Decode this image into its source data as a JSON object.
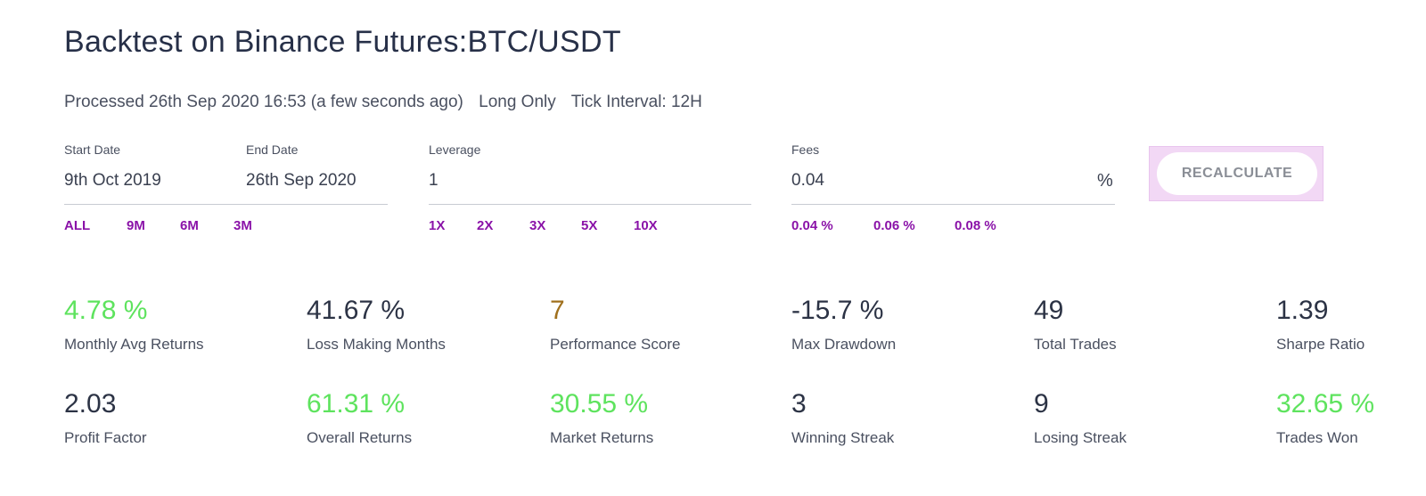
{
  "header": {
    "title": "Backtest on Binance Futures:BTC/USDT",
    "processed": "Processed 26th Sep 2020 16:53 (a few seconds ago)",
    "mode": "Long Only",
    "tick_interval": "Tick Interval: 12H"
  },
  "form": {
    "start_date": {
      "label": "Start Date",
      "value": "9th Oct 2019"
    },
    "end_date": {
      "label": "End Date",
      "value": "26th Sep 2020"
    },
    "leverage": {
      "label": "Leverage",
      "value": "1"
    },
    "fees": {
      "label": "Fees",
      "value": "0.04",
      "unit": "%"
    },
    "range_options": [
      "ALL",
      "9M",
      "6M",
      "3M"
    ],
    "leverage_options": [
      "1X",
      "2X",
      "3X",
      "5X",
      "10X"
    ],
    "fee_options": [
      "0.04 %",
      "0.06 %",
      "0.08 %"
    ],
    "recalculate_label": "RECALCULATE"
  },
  "colors": {
    "positive": "#5ee35e",
    "neutral": "#2c3345",
    "score": "#a0701d",
    "accent": "#8a12a8"
  },
  "stats": [
    {
      "value": "4.78 %",
      "label": "Monthly Avg Returns",
      "tone": "positive"
    },
    {
      "value": "41.67 %",
      "label": "Loss Making Months",
      "tone": "neutral"
    },
    {
      "value": "7",
      "label": "Performance Score",
      "tone": "score"
    },
    {
      "value": "-15.7 %",
      "label": "Max Drawdown",
      "tone": "neutral"
    },
    {
      "value": "49",
      "label": "Total Trades",
      "tone": "neutral"
    },
    {
      "value": "1.39",
      "label": "Sharpe Ratio",
      "tone": "neutral"
    },
    {
      "value": "2.03",
      "label": "Profit Factor",
      "tone": "neutral"
    },
    {
      "value": "61.31 %",
      "label": "Overall Returns",
      "tone": "positive"
    },
    {
      "value": "30.55 %",
      "label": "Market Returns",
      "tone": "positive"
    },
    {
      "value": "3",
      "label": "Winning Streak",
      "tone": "neutral"
    },
    {
      "value": "9",
      "label": "Losing Streak",
      "tone": "neutral"
    },
    {
      "value": "32.65 %",
      "label": "Trades Won",
      "tone": "positive"
    }
  ]
}
